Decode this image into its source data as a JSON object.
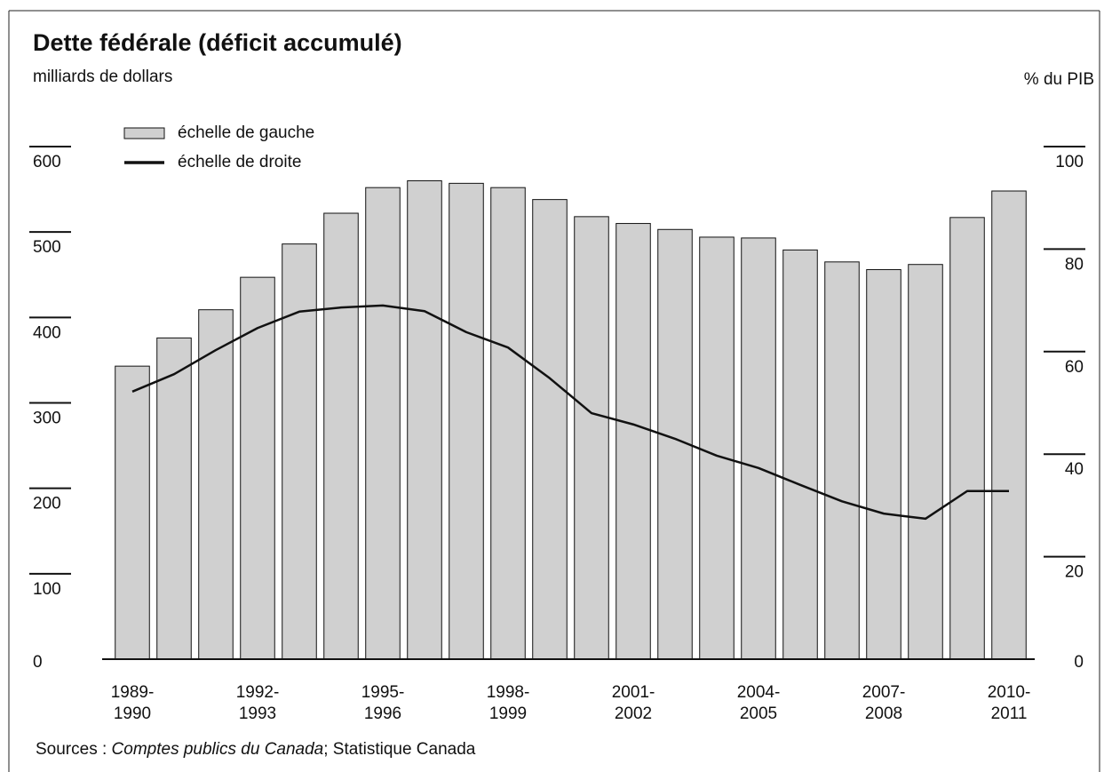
{
  "chart_data": {
    "type": "bar",
    "title": "Dette fédérale (déficit accumulé)",
    "y_label": "milliards de dollars",
    "y2_label": "% du PIB",
    "categories": [
      "1989-\n1990",
      null,
      null,
      "1992-\n1993",
      null,
      null,
      "1995-\n1996",
      null,
      null,
      "1998-\n1999",
      null,
      null,
      "2001-\n2002",
      null,
      null,
      "2004-\n2005",
      null,
      null,
      "2007-\n2008",
      null,
      null,
      "2010-\n2011"
    ],
    "series": [
      {
        "name": "échelle de gauche",
        "type": "bar",
        "color": "#d0d0d0",
        "values": [
          343,
          376,
          409,
          447,
          486,
          522,
          552,
          560,
          557,
          552,
          538,
          518,
          510,
          503,
          494,
          493,
          479,
          465,
          456,
          462,
          517,
          548
        ]
      },
      {
        "name": "échelle de droite",
        "type": "line",
        "color": "#111111",
        "axis": "y2",
        "values": [
          52.2,
          55.6,
          60.3,
          64.6,
          67.8,
          68.6,
          69.0,
          67.9,
          63.8,
          60.8,
          54.8,
          48.0,
          45.8,
          43.0,
          39.7,
          37.3,
          34.0,
          30.8,
          28.4,
          27.4,
          32.8,
          32.8
        ]
      }
    ],
    "ylim": [
      0,
      600
    ],
    "yticks": [
      0,
      100,
      200,
      300,
      400,
      500,
      600
    ],
    "y2lim": [
      0,
      100
    ],
    "y2ticks": [
      0,
      20,
      40,
      60,
      80,
      100
    ],
    "legend": "top-left",
    "source": [
      "Sources :",
      "Comptes publics du Canada",
      "; Statistique Canada"
    ]
  }
}
